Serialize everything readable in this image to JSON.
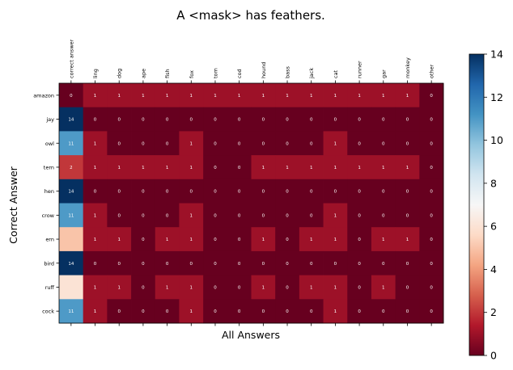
{
  "chart_data": {
    "type": "heatmap",
    "title": "A <mask> has feathers.",
    "xlabel": "All Answers",
    "ylabel": "Correct Answer",
    "x_categories": [
      "correct answer",
      "ling",
      "dog",
      "ape",
      "fish",
      "fox",
      "tom",
      "cod",
      "hound",
      "bass",
      "jack",
      "cat",
      "runner",
      "gar",
      "monkey",
      "other"
    ],
    "y_categories": [
      "amazon",
      "jay",
      "owl",
      "tern",
      "hen",
      "crow",
      "ern",
      "bird",
      "ruff",
      "cock"
    ],
    "values": [
      [
        0,
        1,
        1,
        1,
        1,
        1,
        1,
        1,
        1,
        1,
        1,
        1,
        1,
        1,
        1,
        0
      ],
      [
        14,
        0,
        0,
        0,
        0,
        0,
        0,
        0,
        0,
        0,
        0,
        0,
        0,
        0,
        0,
        0
      ],
      [
        11,
        1,
        0,
        0,
        0,
        1,
        0,
        0,
        0,
        0,
        0,
        1,
        0,
        0,
        0,
        0
      ],
      [
        2,
        1,
        1,
        1,
        1,
        1,
        0,
        0,
        1,
        1,
        1,
        1,
        1,
        1,
        1,
        0
      ],
      [
        14,
        0,
        0,
        0,
        0,
        0,
        0,
        0,
        0,
        0,
        0,
        0,
        0,
        0,
        0,
        0
      ],
      [
        11,
        1,
        0,
        0,
        0,
        1,
        0,
        0,
        0,
        0,
        0,
        1,
        0,
        0,
        0,
        0
      ],
      [
        5,
        1,
        1,
        0,
        1,
        1,
        0,
        0,
        1,
        0,
        1,
        1,
        0,
        1,
        1,
        0
      ],
      [
        14,
        0,
        0,
        0,
        0,
        0,
        0,
        0,
        0,
        0,
        0,
        0,
        0,
        0,
        0,
        0
      ],
      [
        6,
        1,
        1,
        0,
        1,
        1,
        0,
        0,
        1,
        0,
        1,
        1,
        0,
        1,
        0,
        0
      ],
      [
        11,
        1,
        0,
        0,
        0,
        1,
        0,
        0,
        0,
        0,
        0,
        1,
        0,
        0,
        0,
        0
      ]
    ],
    "cell_labels": [
      [
        "0",
        "1",
        "1",
        "1",
        "1",
        "1",
        "1",
        "1",
        "1",
        "1",
        "1",
        "1",
        "1",
        "1",
        "1",
        "0"
      ],
      [
        "14",
        "0",
        "0",
        "0",
        "0",
        "0",
        "0",
        "0",
        "0",
        "0",
        "0",
        "0",
        "0",
        "0",
        "0",
        "0"
      ],
      [
        "11",
        "1",
        "0",
        "0",
        "0",
        "1",
        "0",
        "0",
        "0",
        "0",
        "0",
        "1",
        "0",
        "0",
        "0",
        "0"
      ],
      [
        "2",
        "1",
        "1",
        "1",
        "1",
        "1",
        "0",
        "0",
        "1",
        "1",
        "1",
        "1",
        "1",
        "1",
        "1",
        "0"
      ],
      [
        "14",
        "0",
        "0",
        "0",
        "0",
        "0",
        "0",
        "0",
        "0",
        "0",
        "0",
        "0",
        "0",
        "0",
        "0",
        "0"
      ],
      [
        "11",
        "1",
        "0",
        "0",
        "0",
        "1",
        "0",
        "0",
        "0",
        "0",
        "0",
        "1",
        "0",
        "0",
        "0",
        "0"
      ],
      [
        "",
        "1",
        "1",
        "0",
        "1",
        "1",
        "0",
        "0",
        "1",
        "0",
        "1",
        "1",
        "0",
        "1",
        "1",
        "0"
      ],
      [
        "14",
        "0",
        "0",
        "0",
        "0",
        "0",
        "0",
        "0",
        "0",
        "0",
        "0",
        "0",
        "0",
        "0",
        "0",
        "0"
      ],
      [
        "",
        "1",
        "1",
        "0",
        "1",
        "1",
        "0",
        "0",
        "1",
        "0",
        "1",
        "1",
        "0",
        "1",
        "0",
        "0"
      ],
      [
        "11",
        "1",
        "0",
        "0",
        "0",
        "1",
        "0",
        "0",
        "0",
        "0",
        "0",
        "1",
        "0",
        "0",
        "0",
        "0"
      ]
    ],
    "colormap": "RdBu",
    "color_range": [
      0,
      14
    ],
    "colorbar_ticks": [
      0,
      2,
      4,
      6,
      8,
      10,
      12,
      14
    ],
    "legend_position": "right (colorbar)",
    "grid": false
  }
}
